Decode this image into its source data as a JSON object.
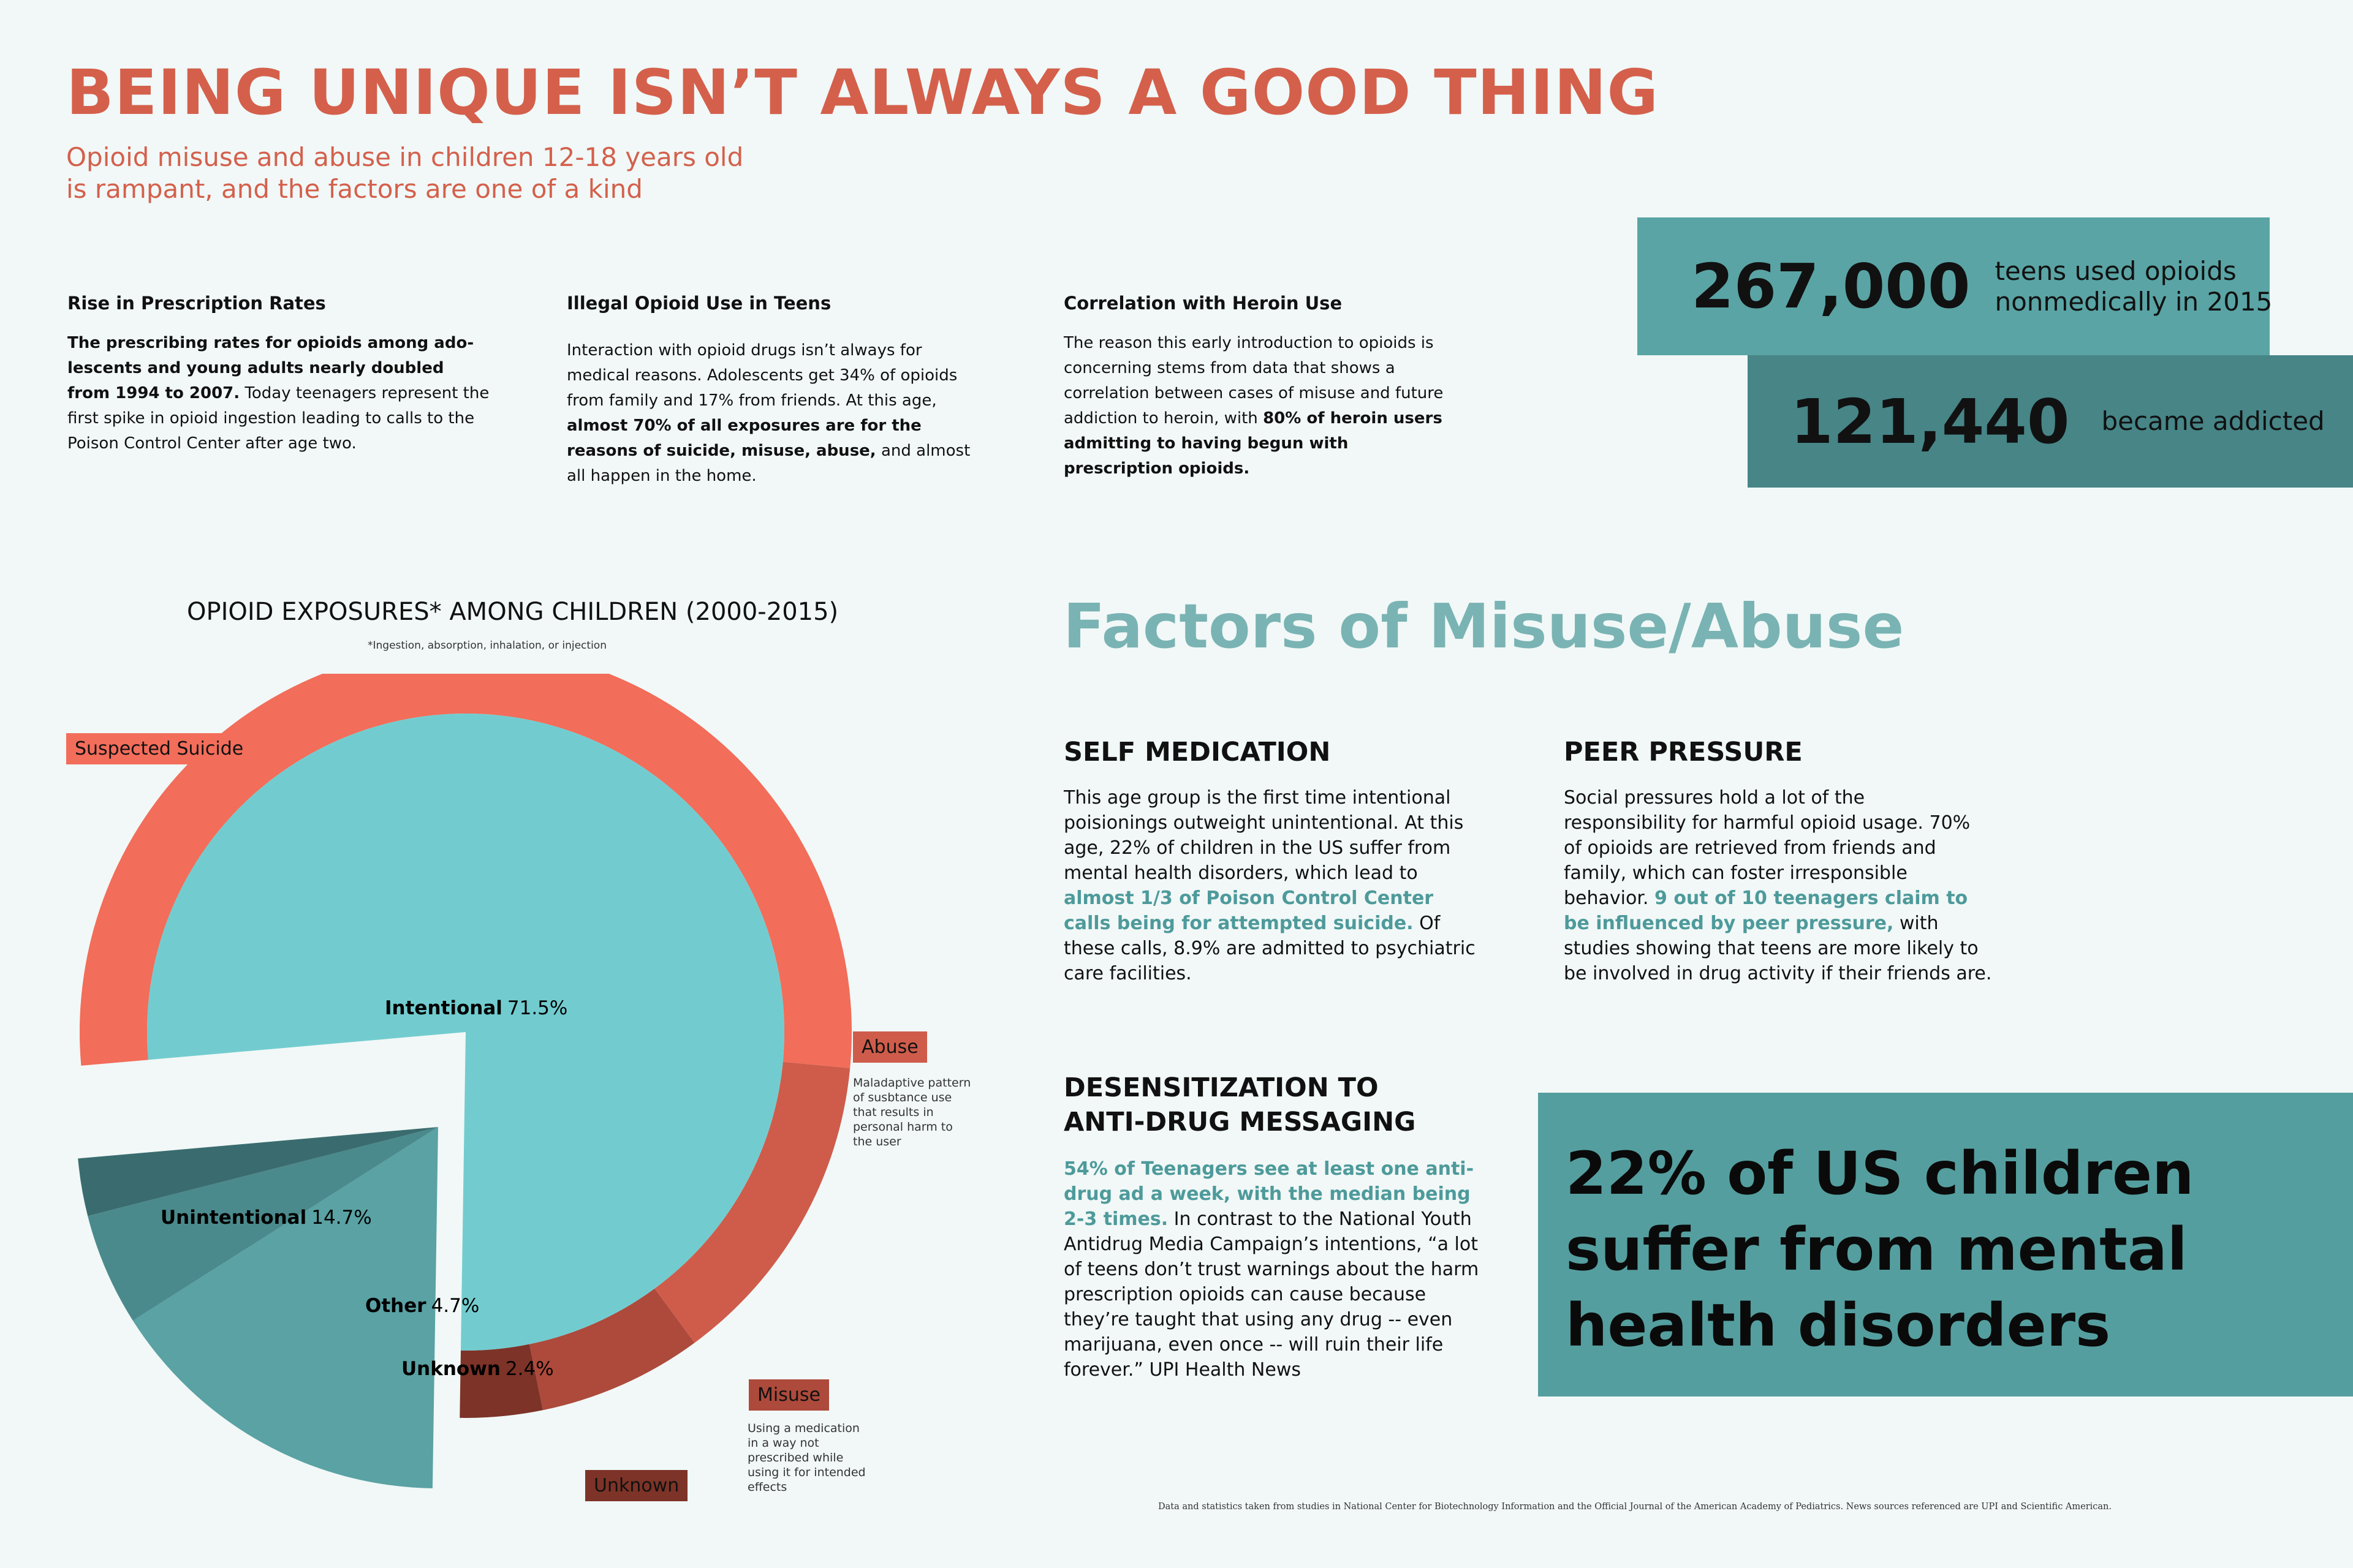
{
  "header": {
    "title": "BEING UNIQUE ISN’T ALWAYS A GOOD THING",
    "subtitle_line1": "Opioid misuse and abuse in children 12-18 years old",
    "subtitle_line2": "is rampant, and the factors are one of a kind"
  },
  "columns": [
    {
      "heading": "Rise in Prescription Rates",
      "bold": "The prescribing rates for opioids among ado­lescents and young adults nearly doubled from 1994 to 2007.",
      "text": " Today teenagers represent the first spike in opioid ingestion leading to calls to the Poison Control Center after age two."
    },
    {
      "heading": "Illegal Opioid Use in Teens",
      "text_a": "Interaction with opioid drugs isn’t always for medical reasons.  Adolescents get 34% of opioids from family and 17% from friends. At this age, ",
      "bold": "almost 70% of all exposures are for the reasons of suicide, misuse, abuse,",
      "text_b": " and almost all happen in the home."
    },
    {
      "heading": "Correlation with Heroin Use",
      "text": "The reason this early introduction to opioids is concerning stems from data that shows a correlation between cases of misuse and future addiction to heroin, with ",
      "bold": "80% of heroin users admitting to having begun with prescription opioids."
    }
  ],
  "stats": [
    {
      "number": "267,000",
      "line1": "teens used opioids",
      "line2": "nonmedically in 2015",
      "color": "#5aa4a5"
    },
    {
      "number": "121,440",
      "line1": "became addicted",
      "color": "#478587"
    }
  ],
  "chart_data": {
    "type": "pie",
    "title": "OPIOID EXPOSURES* AMONG CHILDREN (2000-2015)",
    "note": "*Ingestion, absorption, inhalation, or injection",
    "slices": [
      {
        "label": "Intentional",
        "value": 71.5,
        "display": "71.5%",
        "color": "#72cccf"
      },
      {
        "label": "Unintentional",
        "value": 14.7,
        "display": "14.7%",
        "color": "#5aa2a4"
      },
      {
        "label": "Other",
        "value": 4.7,
        "display": "4.7%",
        "color": "#4b8a8c"
      },
      {
        "label": "Unknown",
        "value": 2.4,
        "display": "2.4%",
        "color": "#3a6c6f"
      }
    ],
    "intentional_breakdown": [
      {
        "label": "Suspected Suicide",
        "color": "#f26d5a"
      },
      {
        "label": "Abuse",
        "color": "#cf5c4b",
        "description": "Maladaptive pattern of susbtance use that results in personal harm to the user"
      },
      {
        "label": "Misuse",
        "color": "#ad4a3c",
        "description": "Using a medication in a way not prescribed while using it for intended effects"
      },
      {
        "label": "Unknown",
        "color": "#7d3327"
      }
    ]
  },
  "factors": {
    "title": "Factors of Misuse/Abuse",
    "self_medication": {
      "heading": "SELF MEDICATION",
      "text_a": "This age group is the first time intentional poisionings outweight unintentional. At this age, 22% of children in the US suffer from mental health disorders, which lead to ",
      "highlight": "almost 1/3 of Poison Control Center calls being for attempted suicide.",
      "text_b": " Of these calls, 8.9% are admitted to psychiatric care facilities."
    },
    "peer_pressure": {
      "heading": "PEER PRESSURE",
      "text_a": "Social pressures hold a lot of the responsibility for harmful opioid usage. 70% of opioids are retrieved from friends and family, which can foster irresponsible behavior. ",
      "highlight": "9 out of 10 teenagers claim to be influenced by peer pressure,",
      "text_b": " with studies showing that teens are more likely to be involved in drug activity if their friends are."
    },
    "desensitization": {
      "heading_line1": "DESENSITIZATION TO",
      "heading_line2": "ANTI-DRUG MESSAGING",
      "highlight": "54% of Teenagers see at least one anti-drug ad a week, with the median being 2-3 times.",
      "text": " In contrast to the National Youth Antidrug Media Campaign’s intentions, “a lot of teens don’t trust warnings about the harm prescription opioids can cause because they’re taught that using any drug -- even marijuana, even once -- will ruin their life forever.” UPI Health News"
    }
  },
  "callout": {
    "line1": "22% of US children",
    "line2": "suffer from mental",
    "line3": "health disorders"
  },
  "footer": "Data and statistics taken from studies in National Center for Biotechnology Information and the Official Journal of the American Academy of Pediatrics. News sources referenced are UPI and Scientific American."
}
